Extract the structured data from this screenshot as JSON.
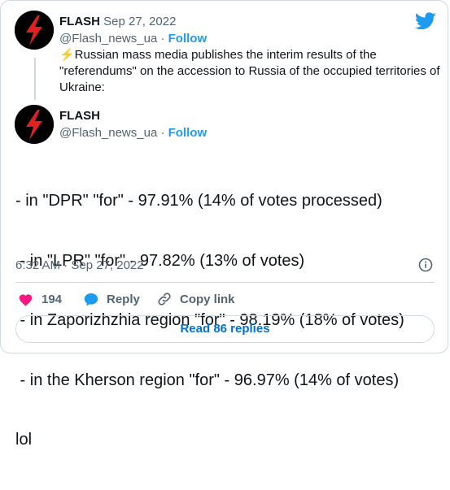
{
  "quoted_tweet": {
    "display_name": "FLASH",
    "date_sep": " · Sep 27, 2022",
    "handle": "@Flash_news_ua",
    "dot": " · ",
    "follow_label": "Follow",
    "text": "⚡Russian mass media publishes the interim results of the \"referendums\" on the accession to Russia of the occupied territories of Ukraine:"
  },
  "main_tweet": {
    "display_name": "FLASH",
    "handle": "@Flash_news_ua",
    "dot": " · ",
    "follow_label": "Follow",
    "lines": [
      "- in \"DPR\" \"for\" - 97.91% (14% of votes processed)",
      " - in \"LPR\" \"for\" - 97.82% (13% of votes)",
      " - in Zaporizhzhia region \"for\" - 98.19% (18% of votes)",
      " - in the Kherson region \"for\" - 96.97% (14% of votes)",
      "lol"
    ],
    "timestamp": "6:32 AM · Sep 27, 2022"
  },
  "actions": {
    "like_count": "194",
    "reply_label": "Reply",
    "copy_link_label": "Copy link"
  },
  "read_replies_label": "Read 86 replies",
  "colors": {
    "twitter_blue": "#1d9bf0",
    "like_red": "#f91880",
    "text": "#0f1419",
    "muted": "#536471",
    "border": "#cfd9de",
    "avatar_bolt": "#e0211f"
  },
  "icons": [
    "twitter-bird-icon",
    "heart-icon",
    "reply-bubble-icon",
    "link-icon",
    "info-icon",
    "lightning-bolt-avatar"
  ]
}
